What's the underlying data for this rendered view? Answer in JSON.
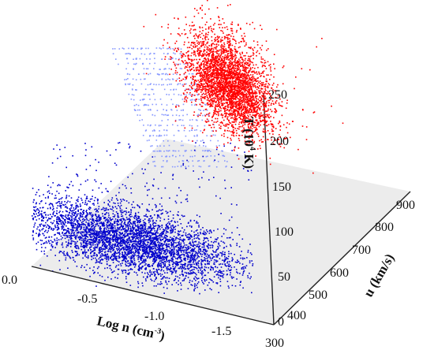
{
  "chart_data": {
    "type": "scatter",
    "projection": "3d",
    "title": "",
    "axes": {
      "x": {
        "label": "Log n (cm",
        "label_exp": "-3",
        "label_close": ")",
        "range": [
          0.0,
          -1.75
        ],
        "ticks": [
          "0.0",
          "-0.5",
          "-1.0",
          "-1.5"
        ]
      },
      "y": {
        "label": "u (km/s)",
        "range": [
          300,
          900
        ],
        "ticks": [
          "300",
          "400",
          "500",
          "600",
          "700",
          "800",
          "900"
        ]
      },
      "z": {
        "label": "T (10",
        "label_exp": "4",
        "label_close": " K)",
        "range": [
          0,
          250
        ],
        "ticks": [
          "0",
          "50",
          "100",
          "150",
          "200",
          "250"
        ]
      }
    },
    "floor_grid": "light gray plane",
    "series": [
      {
        "color": "#ff0000",
        "shape": "ellipse",
        "n_points": 3500,
        "center": {
          "log_n": -0.95,
          "u": 430,
          "T": 215
        },
        "spread": {
          "major": 0.38,
          "minor": 0.22
        },
        "outliers": 25
      },
      {
        "color": "#0000cc",
        "shape": "band",
        "n_points": 4200,
        "center": {
          "log_n": -0.55,
          "u": 520,
          "T": 0
        },
        "spread": {
          "major": 0.75,
          "minor": 0.28
        },
        "outliers": 180
      },
      {
        "color": "#8899ff",
        "shape": "faint striations",
        "n_points": 500,
        "region": "upper-left, behind cluster"
      }
    ]
  }
}
